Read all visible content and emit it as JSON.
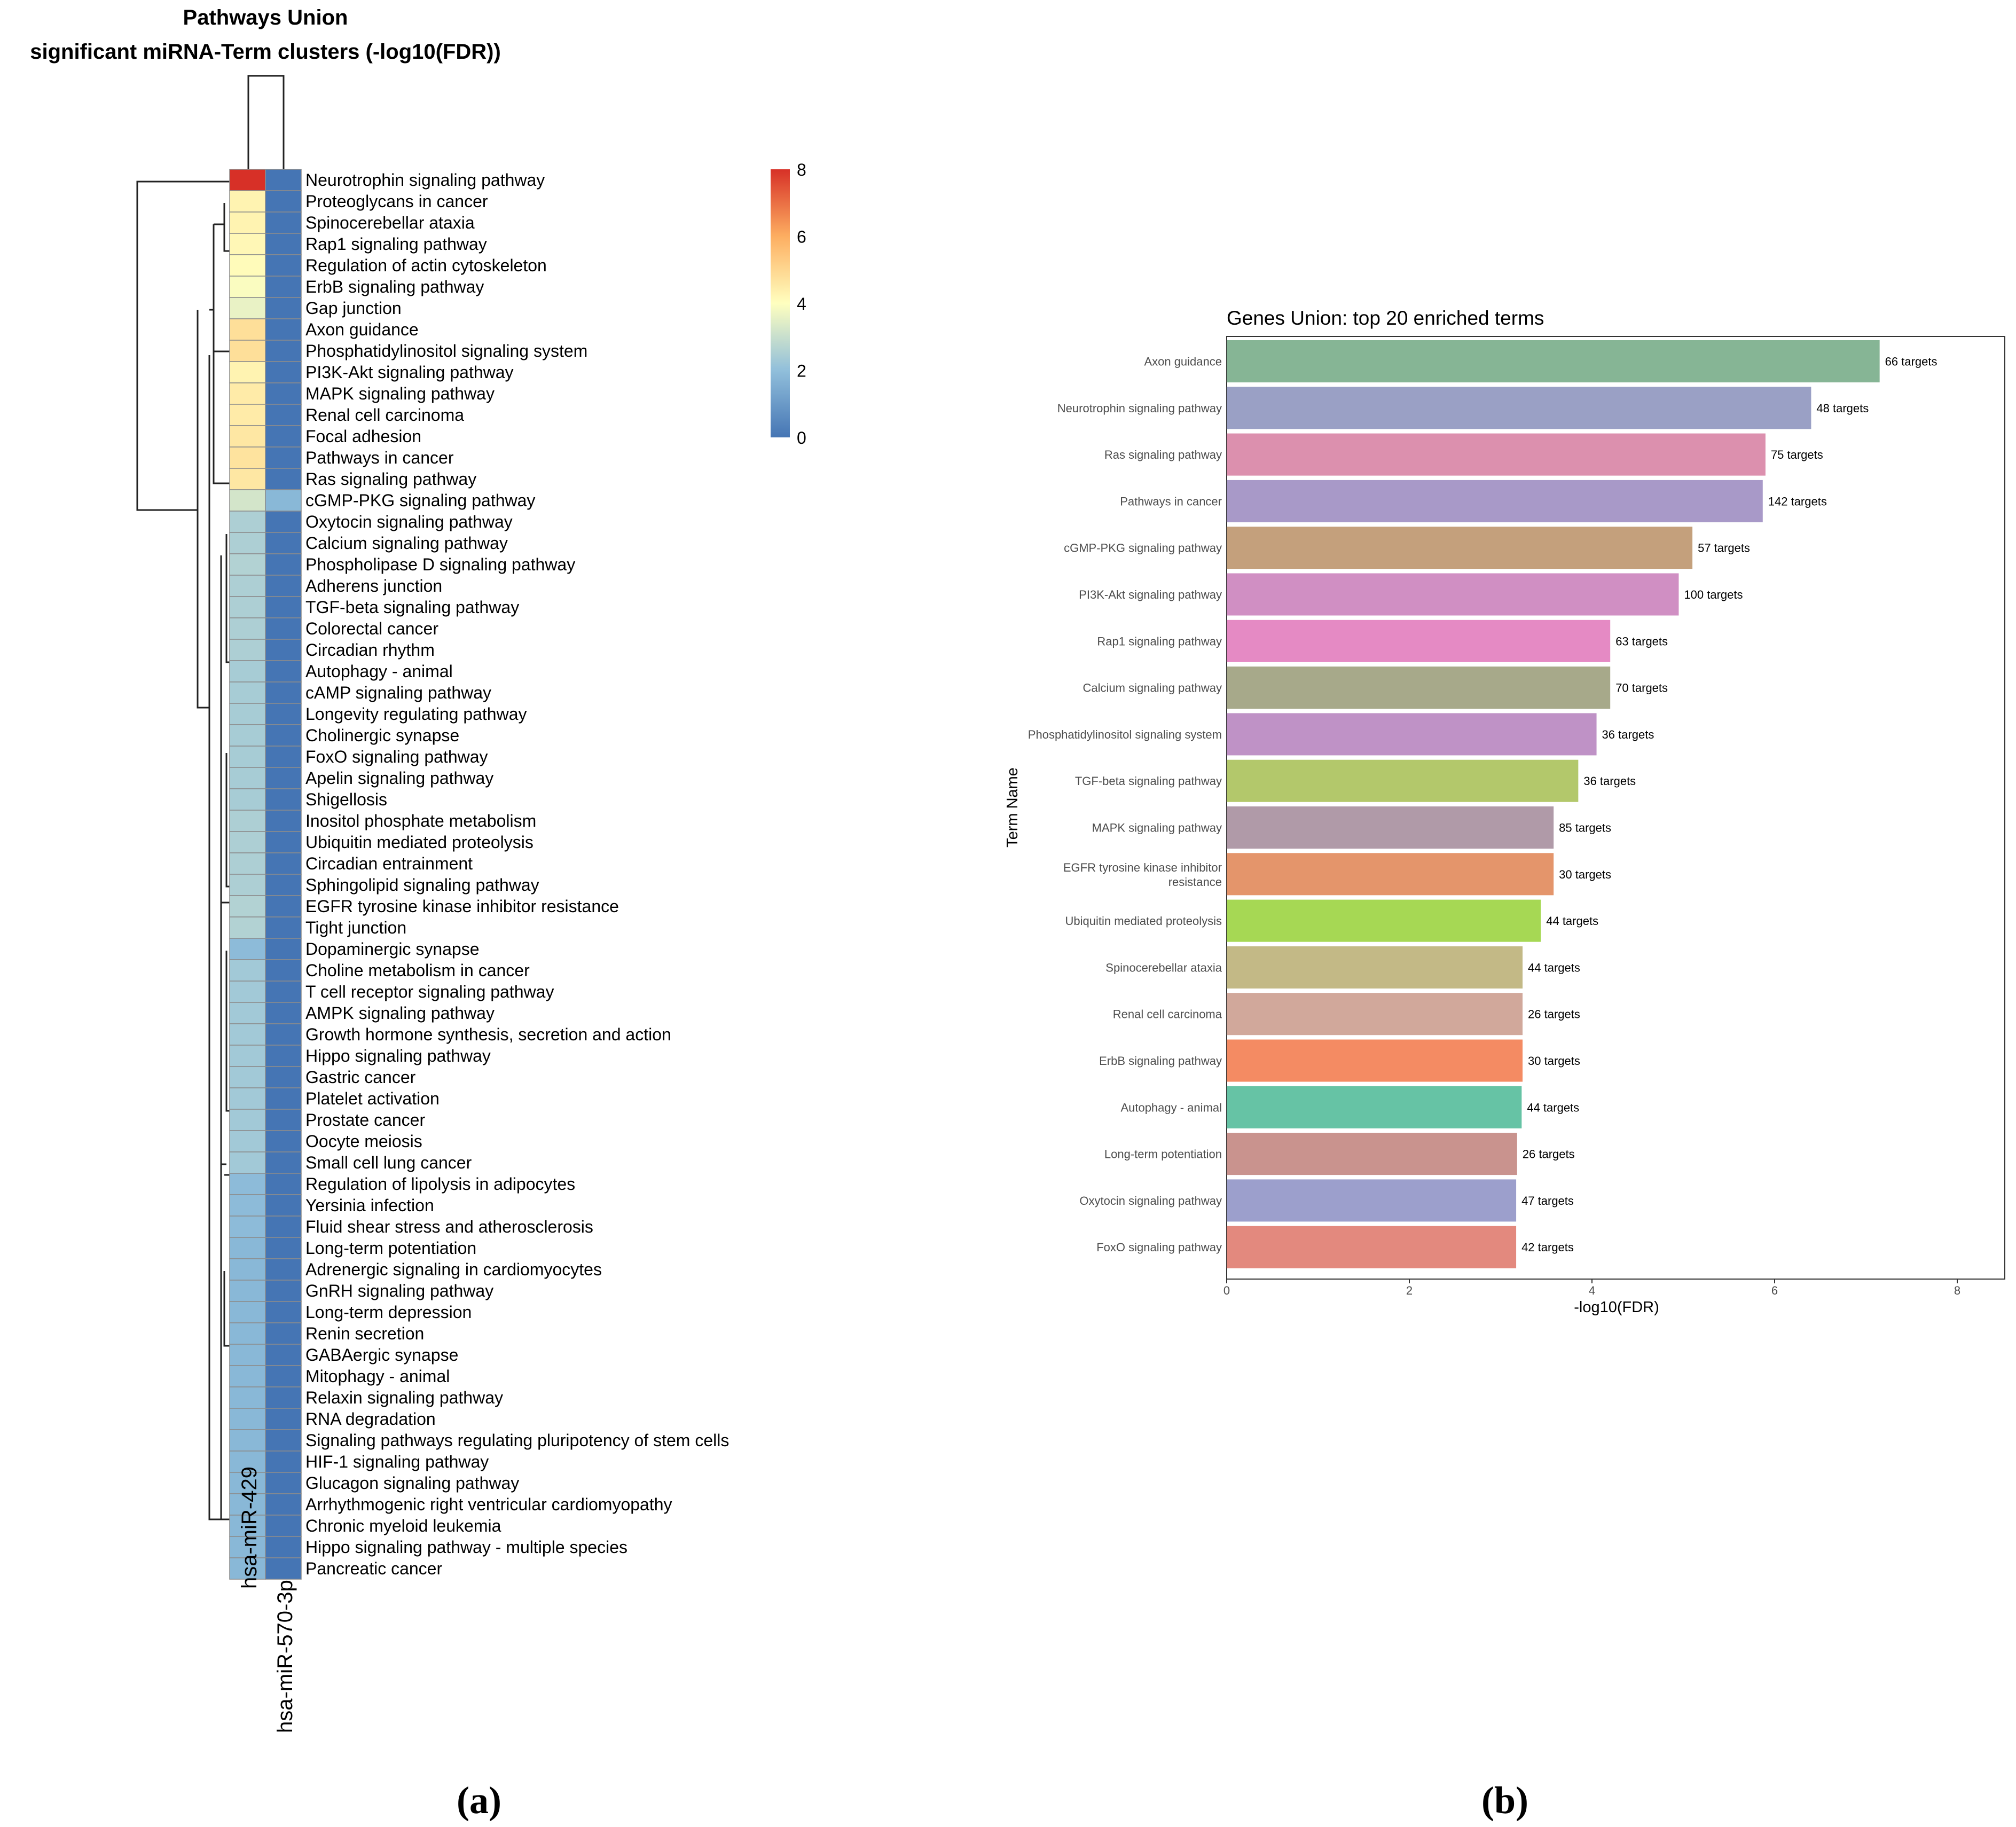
{
  "chart_data": [
    {
      "type": "heatmap",
      "title": "Pathways Union",
      "subtitle": "significant miRNA-Term clusters (-log10(FDR))",
      "panel_label": "(a)",
      "columns": [
        "hsa-miR-429",
        "hsa-miR-570-3p"
      ],
      "rows": [
        "Neurotrophin signaling pathway",
        "Proteoglycans in cancer",
        "Spinocerebellar ataxia",
        "Rap1 signaling pathway",
        "Regulation of actin cytoskeleton",
        "ErbB signaling pathway",
        "Gap junction",
        "Axon guidance",
        "Phosphatidylinositol signaling system",
        "PI3K-Akt signaling pathway",
        "MAPK signaling pathway",
        "Renal cell carcinoma",
        "Focal adhesion",
        "Pathways in cancer",
        "Ras signaling pathway",
        "cGMP-PKG signaling pathway",
        "Oxytocin signaling pathway",
        "Calcium signaling pathway",
        "Phospholipase D signaling pathway",
        "Adherens junction",
        "TGF-beta signaling pathway",
        "Colorectal cancer",
        "Circadian rhythm",
        "Autophagy - animal",
        "cAMP signaling pathway",
        "Longevity regulating pathway",
        "Cholinergic synapse",
        "FoxO signaling pathway",
        "Apelin signaling pathway",
        "Shigellosis",
        "Inositol phosphate metabolism",
        "Ubiquitin mediated proteolysis",
        "Circadian entrainment",
        "Sphingolipid signaling pathway",
        "EGFR tyrosine kinase inhibitor resistance",
        "Tight junction",
        "Dopaminergic synapse",
        "Choline metabolism in cancer",
        "T cell receptor signaling pathway",
        "AMPK signaling pathway",
        "Growth hormone synthesis, secretion and action",
        "Hippo signaling pathway",
        "Gastric cancer",
        "Platelet activation",
        "Prostate cancer",
        "Oocyte meiosis",
        "Small cell lung cancer",
        "Regulation of lipolysis in adipocytes",
        "Yersinia infection",
        "Fluid shear stress and atherosclerosis",
        "Long-term potentiation",
        "Adrenergic signaling in cardiomyocytes",
        "GnRH signaling pathway",
        "Long-term depression",
        "Renin secretion",
        "GABAergic synapse",
        "Mitophagy - animal",
        "Relaxin signaling pathway",
        "RNA degradation",
        "Signaling pathways regulating pluripotency of stem cells",
        "HIF-1 signaling pathway",
        "Glucagon signaling pathway",
        "Arrhythmogenic right ventricular cardiomyopathy",
        "Chronic myeloid leukemia",
        "Hippo signaling pathway - multiple species",
        "Pancreatic cancer"
      ],
      "values": [
        [
          8.0,
          0
        ],
        [
          4.3,
          0
        ],
        [
          4.3,
          0
        ],
        [
          4.2,
          0
        ],
        [
          4.1,
          0
        ],
        [
          3.9,
          0
        ],
        [
          3.6,
          0
        ],
        [
          4.8,
          0
        ],
        [
          4.8,
          0
        ],
        [
          4.3,
          0
        ],
        [
          4.5,
          0
        ],
        [
          4.5,
          0
        ],
        [
          4.6,
          0
        ],
        [
          4.7,
          0
        ],
        [
          4.6,
          0
        ],
        [
          3.2,
          1.8
        ],
        [
          2.5,
          0
        ],
        [
          2.5,
          0
        ],
        [
          2.6,
          0
        ],
        [
          2.5,
          0
        ],
        [
          2.5,
          0
        ],
        [
          2.5,
          0
        ],
        [
          2.5,
          0
        ],
        [
          2.4,
          0
        ],
        [
          2.4,
          0
        ],
        [
          2.4,
          0
        ],
        [
          2.4,
          0
        ],
        [
          2.4,
          0
        ],
        [
          2.4,
          0
        ],
        [
          2.4,
          0
        ],
        [
          2.5,
          0
        ],
        [
          2.5,
          0
        ],
        [
          2.5,
          0
        ],
        [
          2.5,
          0
        ],
        [
          2.6,
          0
        ],
        [
          2.6,
          0
        ],
        [
          1.9,
          0
        ],
        [
          2.3,
          0
        ],
        [
          2.3,
          0
        ],
        [
          2.3,
          0
        ],
        [
          2.3,
          0
        ],
        [
          2.3,
          0
        ],
        [
          2.3,
          0
        ],
        [
          2.3,
          0
        ],
        [
          2.3,
          0
        ],
        [
          2.3,
          0
        ],
        [
          2.3,
          0
        ],
        [
          1.9,
          0
        ],
        [
          1.9,
          0
        ],
        [
          1.9,
          0
        ],
        [
          1.8,
          0
        ],
        [
          1.8,
          0
        ],
        [
          1.8,
          0
        ],
        [
          1.8,
          0
        ],
        [
          1.8,
          0
        ],
        [
          1.8,
          0
        ],
        [
          1.8,
          0
        ],
        [
          1.8,
          0
        ],
        [
          1.8,
          0
        ],
        [
          1.8,
          0
        ],
        [
          1.8,
          0
        ],
        [
          1.8,
          0
        ],
        [
          1.8,
          0
        ],
        [
          1.8,
          0
        ],
        [
          1.8,
          0
        ],
        [
          1.8,
          0
        ]
      ],
      "colorbar": {
        "min": 0,
        "max": 8,
        "ticks": [
          0,
          2,
          4,
          6,
          8
        ],
        "palette": [
          "#4575b4",
          "#91bfdb",
          "#ffffbf",
          "#fdae61",
          "#d73027"
        ]
      }
    },
    {
      "type": "bar",
      "orientation": "horizontal",
      "title": "Genes Union: top 20 enriched terms",
      "panel_label": "(b)",
      "xlabel": "-log10(FDR)",
      "ylabel": "Term Name",
      "xlim": [
        0,
        8.6
      ],
      "xticks": [
        0,
        2,
        4,
        6,
        8
      ],
      "categories": [
        "Axon guidance",
        "Neurotrophin signaling pathway",
        "Ras signaling pathway",
        "Pathways in cancer",
        "cGMP-PKG signaling pathway",
        "PI3K-Akt signaling pathway",
        "Rap1 signaling pathway",
        "Calcium signaling pathway",
        "Phosphatidylinositol signaling system",
        "TGF-beta signaling pathway",
        "MAPK signaling pathway",
        "EGFR tyrosine kinase inhibitor\nresistance",
        "Ubiquitin mediated proteolysis",
        "Spinocerebellar ataxia",
        "Renal cell carcinoma",
        "ErbB signaling pathway",
        "Autophagy - animal",
        "Long-term potentiation",
        "Oxytocin signaling pathway",
        "FoxO signaling pathway"
      ],
      "values": [
        7.15,
        6.4,
        5.9,
        5.87,
        5.1,
        4.95,
        4.2,
        4.2,
        4.05,
        3.85,
        3.58,
        3.58,
        3.44,
        3.24,
        3.24,
        3.24,
        3.23,
        3.18,
        3.17,
        3.17
      ],
      "labels": [
        "66 targets",
        "48 targets",
        "75 targets",
        "142 targets",
        "57 targets",
        "100 targets",
        "63 targets",
        "70 targets",
        "36 targets",
        "36 targets",
        "85 targets",
        "30 targets",
        "44 targets",
        "44 targets",
        "26 targets",
        "30 targets",
        "44 targets",
        "26 targets",
        "47 targets",
        "42 targets"
      ],
      "colors": [
        "#86b595",
        "#9aa0c5",
        "#dc90ae",
        "#a899c8",
        "#c4a07c",
        "#d08fc3",
        "#e58ac4",
        "#a7a98a",
        "#bf92c6",
        "#b3c86b",
        "#b09aa8",
        "#e4956b",
        "#a6d854",
        "#c3b986",
        "#d1a89b",
        "#f48b63",
        "#66c3a5",
        "#c9938e",
        "#9c9fcc",
        "#e3897e"
      ]
    }
  ]
}
